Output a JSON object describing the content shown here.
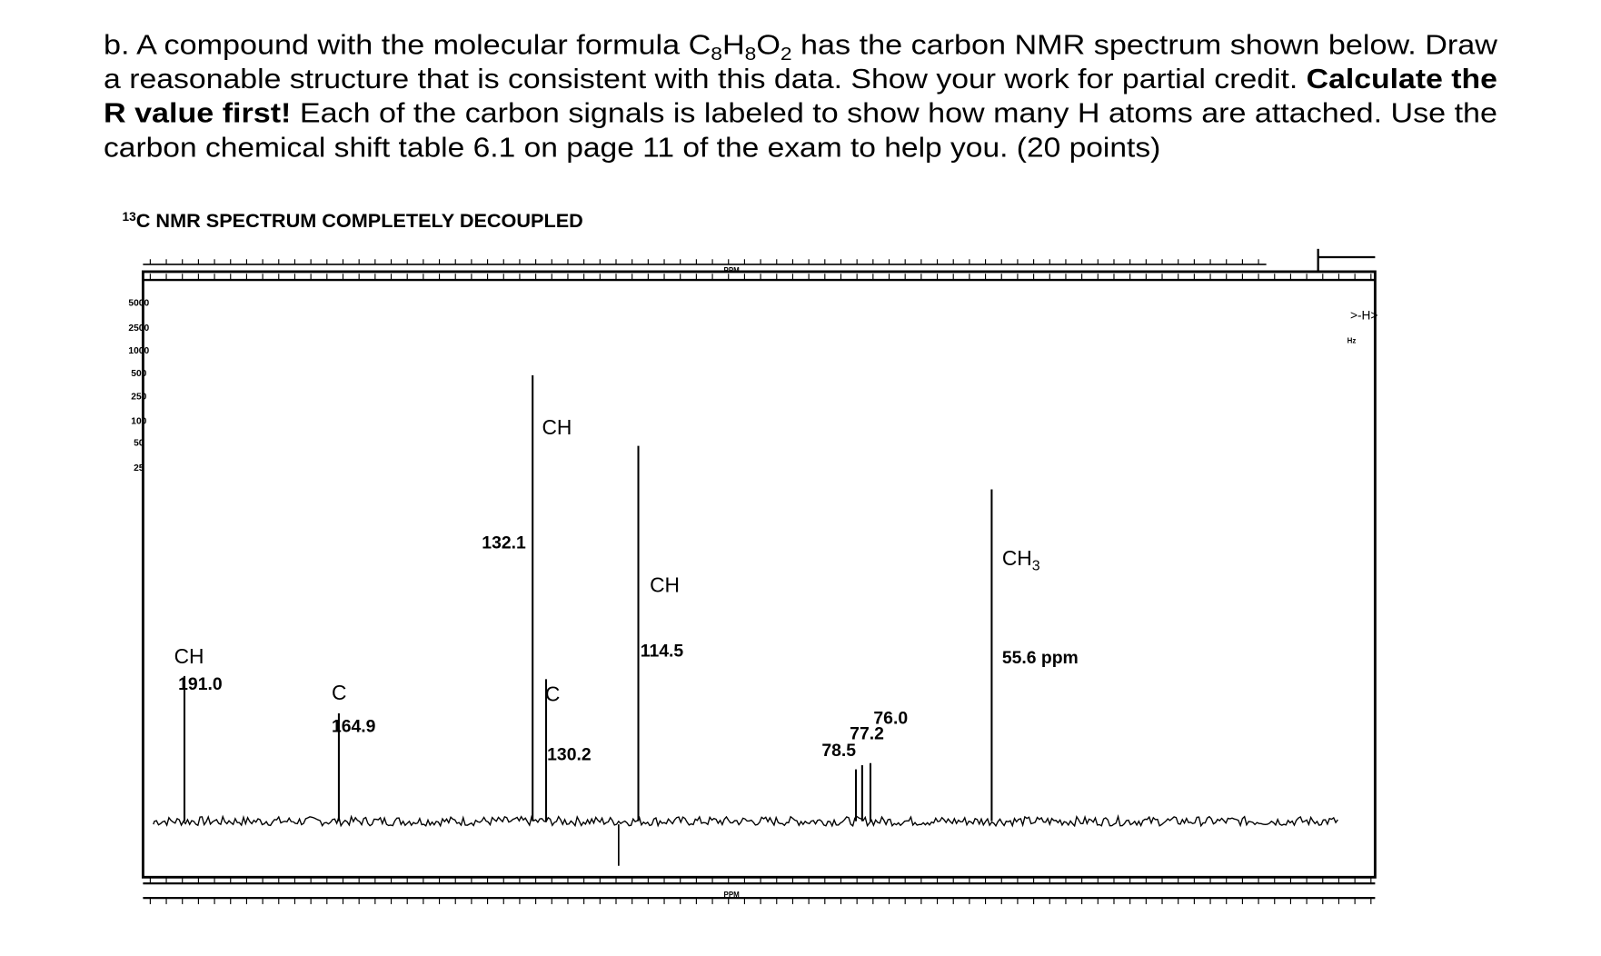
{
  "question": {
    "line1": {
      "a": "b. A compound with the molecular formula ",
      "formula": [
        "C",
        "8",
        "H",
        "8",
        "O",
        "2"
      ],
      "b": " has the carbon NMR spectrum shown below. Draw"
    },
    "line2": {
      "a": "a reasonable structure that is consistent with this data. Show your work for partial credit. ",
      "bold": "Calculate the"
    },
    "line3": {
      "bold": "R value first!",
      "a": " Each of the carbon signals is labeled to show how many H atoms are attached. Use the"
    },
    "line4": "carbon chemical shift table 6.1 on page 11 of the exam to help you. (20 points)"
  },
  "spectrum": {
    "title_sup": "13",
    "title": "C NMR SPECTRUM COMPLETELY DECOUPLED",
    "sweep_labels": [
      "5000",
      "2500",
      "1000",
      "500",
      "250",
      "100",
      "50",
      "25"
    ],
    "ppm_label": "PPM",
    "hz_label": "Hz",
    "peaks": [
      {
        "type": "CH",
        "shift": "191.0"
      },
      {
        "type": "C",
        "shift": "164.9"
      },
      {
        "type": "CH",
        "shift": "132.1"
      },
      {
        "type": "C",
        "shift": "130.2"
      },
      {
        "type": "CH",
        "shift": "114.5"
      },
      {
        "shift": "78.5"
      },
      {
        "shift": "77.2"
      },
      {
        "shift": "76.0"
      },
      {
        "type": [
          "CH",
          "3"
        ],
        "shift": "55.6 ppm"
      }
    ]
  }
}
